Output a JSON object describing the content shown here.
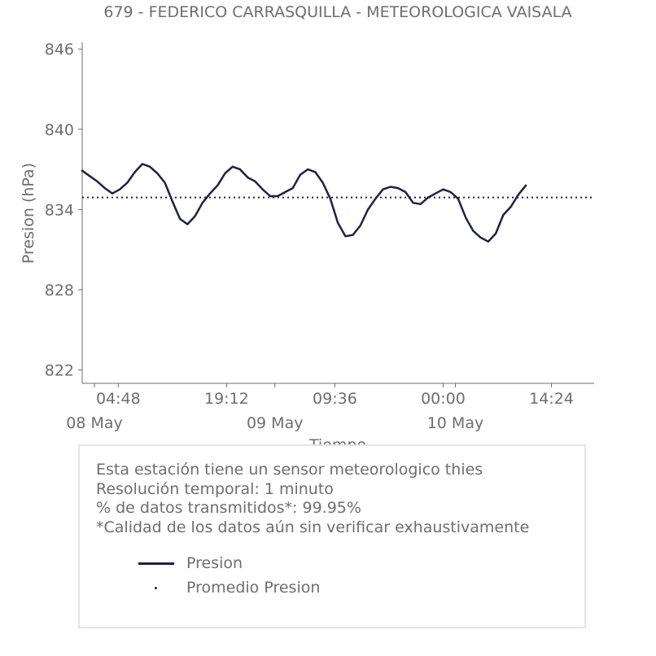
{
  "chart_data": {
    "type": "line",
    "title": "679 - FEDERICO CARRASQUILLA - METEOROLOGICA VAISALA",
    "xlabel": "Tiempo",
    "ylabel": "Presion (hPa)",
    "ylim": [
      821,
      846.5
    ],
    "xlim": [
      "08 May 00:00",
      "10 May 20:05"
    ],
    "y_ticks": [
      822,
      828,
      834,
      840,
      846
    ],
    "x_ticks": [
      {
        "label": "04:48",
        "x": "08 May 04:48"
      },
      {
        "label": "19:12",
        "x": "08 May 19:12"
      },
      {
        "label": "09:36",
        "x": "09 May 09:36"
      },
      {
        "label": "00:00",
        "x": "10 May 00:00"
      },
      {
        "label": "14:24",
        "x": "10 May 14:24"
      }
    ],
    "date_labels": [
      {
        "label": "08 May",
        "x": "08 May 00:00"
      },
      {
        "label": "09 May",
        "x": "09 May 00:00"
      },
      {
        "label": "10 May",
        "x": "10 May 00:00"
      }
    ],
    "grid": false,
    "series": [
      {
        "name": "Presion",
        "color": "#1f2145",
        "style": "solid",
        "points": [
          [
            "08 May 00:00",
            836.9
          ],
          [
            "08 May 01:00",
            836.5
          ],
          [
            "08 May 02:00",
            836.1
          ],
          [
            "08 May 03:00",
            835.6
          ],
          [
            "08 May 04:00",
            835.2
          ],
          [
            "08 May 05:00",
            835.5
          ],
          [
            "08 May 06:00",
            836.0
          ],
          [
            "08 May 07:00",
            836.8
          ],
          [
            "08 May 08:00",
            837.4
          ],
          [
            "08 May 09:00",
            837.2
          ],
          [
            "08 May 10:00",
            836.7
          ],
          [
            "08 May 11:00",
            836.0
          ],
          [
            "08 May 12:00",
            834.6
          ],
          [
            "08 May 13:00",
            833.3
          ],
          [
            "08 May 14:00",
            832.9
          ],
          [
            "08 May 15:00",
            833.5
          ],
          [
            "08 May 16:00",
            834.5
          ],
          [
            "08 May 17:00",
            835.2
          ],
          [
            "08 May 18:00",
            835.8
          ],
          [
            "08 May 19:00",
            836.7
          ],
          [
            "08 May 20:00",
            837.2
          ],
          [
            "08 May 21:00",
            837.0
          ],
          [
            "08 May 22:00",
            836.4
          ],
          [
            "08 May 23:00",
            836.1
          ],
          [
            "09 May 00:00",
            835.5
          ],
          [
            "09 May 01:00",
            835.0
          ],
          [
            "09 May 02:00",
            835.0
          ],
          [
            "09 May 03:00",
            835.3
          ],
          [
            "09 May 04:00",
            835.6
          ],
          [
            "09 May 05:00",
            836.6
          ],
          [
            "09 May 06:00",
            837.0
          ],
          [
            "09 May 07:00",
            836.8
          ],
          [
            "09 May 08:00",
            836.0
          ],
          [
            "09 May 09:00",
            834.8
          ],
          [
            "09 May 10:00",
            833.0
          ],
          [
            "09 May 11:00",
            832.0
          ],
          [
            "09 May 12:00",
            832.1
          ],
          [
            "09 May 13:00",
            832.8
          ],
          [
            "09 May 14:00",
            834.0
          ],
          [
            "09 May 15:00",
            834.8
          ],
          [
            "09 May 16:00",
            835.5
          ],
          [
            "09 May 17:00",
            835.7
          ],
          [
            "09 May 18:00",
            835.6
          ],
          [
            "09 May 19:00",
            835.3
          ],
          [
            "09 May 20:00",
            834.5
          ],
          [
            "09 May 21:00",
            834.4
          ],
          [
            "09 May 22:00",
            834.9
          ],
          [
            "09 May 23:00",
            835.2
          ],
          [
            "10 May 00:00",
            835.5
          ],
          [
            "10 May 01:00",
            835.3
          ],
          [
            "10 May 02:00",
            834.8
          ],
          [
            "10 May 03:00",
            833.4
          ],
          [
            "10 May 04:00",
            832.4
          ],
          [
            "10 May 05:00",
            831.9
          ],
          [
            "10 May 06:00",
            831.6
          ],
          [
            "10 May 07:00",
            832.2
          ],
          [
            "10 May 08:00",
            833.6
          ],
          [
            "10 May 09:00",
            834.2
          ],
          [
            "10 May 10:00",
            835.1
          ],
          [
            "10 May 11:00",
            835.8
          ]
        ]
      },
      {
        "name": "Promedio Presion",
        "color": "#1f2145",
        "style": "dotted",
        "value": 834.9
      }
    ],
    "legend": {
      "placement": "bottom",
      "entries": [
        {
          "label": "Presion",
          "marker": "line"
        },
        {
          "label": "Promedio Presion",
          "marker": "dot"
        }
      ]
    }
  },
  "info": {
    "lines": [
      "Esta estación tiene un sensor meteorologico thies",
      "Resolución temporal: 1 minuto",
      "% de datos transmitidos*: 99.95%",
      "*Calidad de los datos aún sin verificar exhaustivamente"
    ]
  },
  "colors": {
    "series": "#1f2145",
    "text": "#6e6e6e",
    "axis": "#6e6e6e",
    "box_border": "#e4e4e4"
  }
}
